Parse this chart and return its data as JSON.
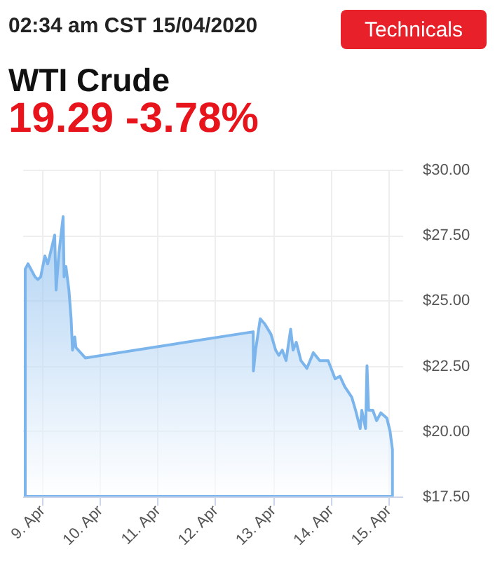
{
  "chart_data": {
    "type": "area",
    "title": "WTI Crude",
    "subtitle": "19.29 -3.78%",
    "annotations": [
      "02:34 am CST 15/04/2020",
      "Technicals"
    ],
    "x": [
      "2020-04-08T17:00",
      "2020-04-08T18:10",
      "2020-04-08T19:55",
      "2020-04-08T21:05",
      "2020-04-08T22:15",
      "2020-04-08T23:25",
      "2020-04-09T01:10",
      "2020-04-09T02:20",
      "2020-04-09T02:55",
      "2020-04-09T05:15",
      "2020-04-09T05:50",
      "2020-04-09T07:00",
      "2020-04-09T08:45",
      "2020-04-09T09:10",
      "2020-04-09T09:55",
      "2020-04-09T11:10",
      "2020-04-09T12:05",
      "2020-04-09T12:40",
      "2020-04-09T13:35",
      "2020-04-09T14:05",
      "2020-04-09T18:00",
      "2020-04-12T15:50",
      "2020-04-12T15:55",
      "2020-04-12T16:50",
      "2020-04-12T18:45",
      "2020-04-12T20:40",
      "2020-04-12T23:15",
      "2020-04-13T01:10",
      "2020-04-13T02:30",
      "2020-04-13T03:55",
      "2020-04-13T05:30",
      "2020-04-13T07:25",
      "2020-04-13T08:25",
      "2020-04-13T09:45",
      "2020-04-13T11:40",
      "2020-04-13T14:10",
      "2020-04-13T16:50",
      "2020-04-13T19:30",
      "2020-04-13T23:00",
      "2020-04-14T01:55",
      "2020-04-14T03:55",
      "2020-04-14T05:55",
      "2020-04-14T08:50",
      "2020-04-14T10:25",
      "2020-04-14T12:20",
      "2020-04-14T13:00",
      "2020-04-14T14:35",
      "2020-04-14T15:10",
      "2020-04-14T15:50",
      "2020-04-14T17:35",
      "2020-04-14T19:10",
      "2020-04-14T20:55",
      "2020-04-14T23:25",
      "2020-04-15T00:45",
      "2020-04-15T01:45"
    ],
    "series": [
      {
        "color": "#7cb5ec",
        "values": [
          26.2,
          26.4,
          26.1,
          25.9,
          25.8,
          25.9,
          26.7,
          26.4,
          26.6,
          27.5,
          25.4,
          26.8,
          28.2,
          25.9,
          26.3,
          25.4,
          24.3,
          23.1,
          23.6,
          23.2,
          22.8,
          23.8,
          22.3,
          23.1,
          24.3,
          24.1,
          23.7,
          23.1,
          22.9,
          23.1,
          22.7,
          23.9,
          23.1,
          23.4,
          22.7,
          22.4,
          23.0,
          22.7,
          22.7,
          22.0,
          22.1,
          21.7,
          21.3,
          20.8,
          20.1,
          20.8,
          20.1,
          22.5,
          20.8,
          20.8,
          20.4,
          20.7,
          20.5,
          20.0,
          19.3
        ]
      }
    ],
    "xlim": [
      "2020-04-08T15:50",
      "2020-04-15T05:55"
    ],
    "xticks": [
      {
        "value": "2020-04-09",
        "label": "9. Apr"
      },
      {
        "value": "2020-04-10",
        "label": "10. Apr"
      },
      {
        "value": "2020-04-11",
        "label": "11. Apr"
      },
      {
        "value": "2020-04-12",
        "label": "12. Apr"
      },
      {
        "value": "2020-04-13",
        "label": "13. Apr"
      },
      {
        "value": "2020-04-14",
        "label": "14. Apr"
      },
      {
        "value": "2020-04-15",
        "label": "15. Apr"
      }
    ],
    "ylim": [
      17.5,
      30
    ],
    "yticks": [
      {
        "value": 17.5,
        "label": "$17.50"
      },
      {
        "value": 20,
        "label": "$20.00"
      },
      {
        "value": 22.5,
        "label": "$22.50"
      },
      {
        "value": 25,
        "label": "$25.00"
      },
      {
        "value": 27.5,
        "label": "$27.50"
      },
      {
        "value": 30,
        "label": "$30.00"
      }
    ],
    "grid": true
  }
}
